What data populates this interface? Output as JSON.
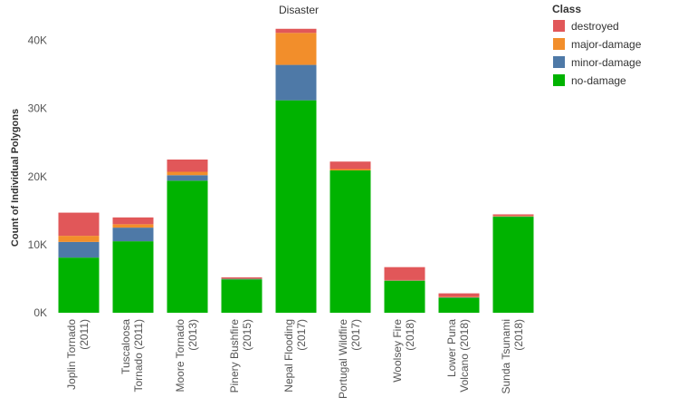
{
  "chart_data": {
    "type": "bar",
    "stacked": true,
    "title": "Disaster",
    "ylabel": "Count of Individual Polygons",
    "xlabel": "",
    "ylim": [
      0,
      43000
    ],
    "yticks": [
      0,
      10000,
      20000,
      30000,
      40000
    ],
    "ytick_labels": [
      "0K",
      "10K",
      "20K",
      "30K",
      "40K"
    ],
    "grid": false,
    "legend_position": "top-right",
    "legend_title": "Class",
    "categories": [
      [
        "Joplin Tornado",
        "(2011)"
      ],
      [
        "Tuscaloosa",
        "Tornado (2011)"
      ],
      [
        "Moore Tornado",
        "(2013)"
      ],
      [
        "Pinery Bushfire",
        "(2015)"
      ],
      [
        "Nepal Flooding",
        "(2017)"
      ],
      [
        "Portugal Wildfire",
        "(2017)"
      ],
      [
        "Woolsey Fire",
        "(2018)"
      ],
      [
        "Lower Puna",
        "Volcano (2018)"
      ],
      [
        "Sunda Tsunami",
        "(2018)"
      ]
    ],
    "series": [
      {
        "name": "no-damage",
        "color": "#00b300",
        "values": [
          8100,
          10500,
          19400,
          4900,
          31200,
          20900,
          4700,
          2200,
          14100
        ]
      },
      {
        "name": "minor-damage",
        "color": "#4e79a7",
        "values": [
          2300,
          2000,
          800,
          100,
          5200,
          0,
          50,
          50,
          50
        ]
      },
      {
        "name": "major-damage",
        "color": "#f28e2b",
        "values": [
          900,
          500,
          500,
          50,
          4700,
          200,
          50,
          100,
          100
        ]
      },
      {
        "name": "destroyed",
        "color": "#e15759",
        "values": [
          3400,
          1000,
          1800,
          150,
          600,
          1100,
          1900,
          500,
          200
        ]
      }
    ],
    "legend_order": [
      "destroyed",
      "major-damage",
      "minor-damage",
      "no-damage"
    ]
  }
}
